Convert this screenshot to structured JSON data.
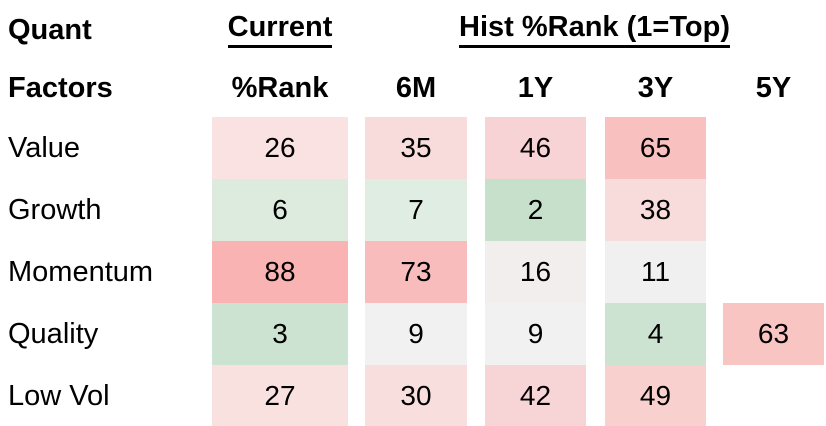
{
  "table": {
    "title_line1": "Quant",
    "title_line2": "Factors",
    "group_current": "Current",
    "group_hist": "Hist %Rank (1=Top)",
    "columns": [
      "%Rank",
      "6M",
      "1Y",
      "3Y",
      "5Y"
    ],
    "rows": [
      {
        "label": "Value",
        "cells": [
          {
            "value": "26",
            "bg": "#F9E2E1"
          },
          {
            "value": "35",
            "bg": "#F8DCDC"
          },
          {
            "value": "46",
            "bg": "#F7D3D5"
          },
          {
            "value": "65",
            "bg": "#F9C0C0"
          },
          null
        ]
      },
      {
        "label": "Growth",
        "cells": [
          {
            "value": "6",
            "bg": "#DDEBDE"
          },
          {
            "value": "7",
            "bg": "#E0EDE2"
          },
          {
            "value": "2",
            "bg": "#C6E0CB"
          },
          {
            "value": "38",
            "bg": "#F8DBDB"
          },
          null
        ]
      },
      {
        "label": "Momentum",
        "cells": [
          {
            "value": "88",
            "bg": "#FAB3B3"
          },
          {
            "value": "73",
            "bg": "#F9BCBC"
          },
          {
            "value": "16",
            "bg": "#F3EEEE"
          },
          {
            "value": "11",
            "bg": "#F1F0F0"
          },
          null
        ]
      },
      {
        "label": "Quality",
        "cells": [
          {
            "value": "3",
            "bg": "#CBE3D0"
          },
          {
            "value": "9",
            "bg": "#F2F1F1"
          },
          {
            "value": "9",
            "bg": "#F2F1F1"
          },
          {
            "value": "4",
            "bg": "#CDE3D1"
          },
          {
            "value": "63",
            "bg": "#F9C5C3"
          }
        ]
      },
      {
        "label": "Low Vol",
        "cells": [
          {
            "value": "27",
            "bg": "#F9E1E0"
          },
          {
            "value": "30",
            "bg": "#F8DFDE"
          },
          {
            "value": "42",
            "bg": "#F7D4D5"
          },
          {
            "value": "49",
            "bg": "#F8D1CF"
          },
          null
        ]
      }
    ]
  },
  "colors": {
    "text": "#000000",
    "background": "#FFFFFF",
    "heat_low_green": "#C6E0CB",
    "heat_mid_neutral": "#F1F0F0",
    "heat_high_red": "#FAB3B3"
  },
  "chart_data": {
    "type": "heatmap",
    "title": "Quant Factors %Rank",
    "row_header": "Quant Factors",
    "column_groups": [
      {
        "label": "Current",
        "columns": [
          "%Rank"
        ]
      },
      {
        "label": "Hist %Rank (1=Top)",
        "columns": [
          "6M",
          "1Y",
          "3Y",
          "5Y"
        ]
      }
    ],
    "columns": [
      "Current %Rank",
      "6M",
      "1Y",
      "3Y",
      "5Y"
    ],
    "rows": [
      "Value",
      "Growth",
      "Momentum",
      "Quality",
      "Low Vol"
    ],
    "values": [
      [
        26,
        35,
        46,
        65,
        null
      ],
      [
        6,
        7,
        2,
        38,
        null
      ],
      [
        88,
        73,
        16,
        11,
        null
      ],
      [
        3,
        9,
        9,
        4,
        63
      ],
      [
        27,
        30,
        42,
        49,
        null
      ]
    ],
    "scale_note": "1=Top; low values shaded green, high values shaded red",
    "value_range": [
      1,
      100
    ],
    "legend": "none",
    "grid": false
  }
}
